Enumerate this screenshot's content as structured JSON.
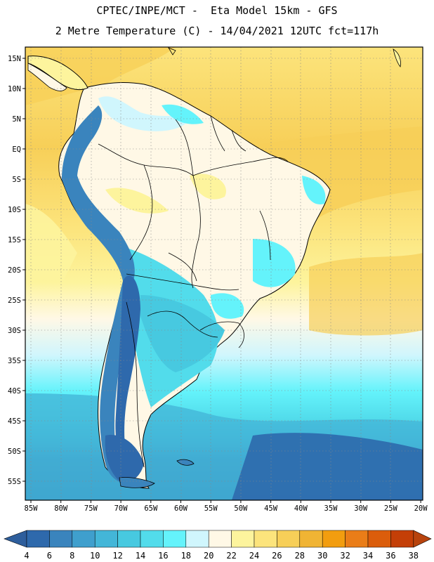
{
  "header": {
    "line1": "CPTEC/INPE/MCT -  Eta Model 15km - GFS",
    "line2": "2 Metre Temperature (C) - 14/04/2021 12UTC fct=117h"
  },
  "map": {
    "lat_labels": [
      "15N",
      "10N",
      "5N",
      "EQ",
      "5S",
      "10S",
      "15S",
      "20S",
      "25S",
      "30S",
      "35S",
      "40S",
      "45S",
      "50S",
      "55S"
    ],
    "lon_labels": [
      "85W",
      "80W",
      "75W",
      "70W",
      "65W",
      "60W",
      "55W",
      "50W",
      "45W",
      "40W",
      "35W",
      "30W",
      "25W",
      "20W"
    ]
  },
  "colorbar": {
    "labels": [
      "4",
      "6",
      "8",
      "10",
      "12",
      "14",
      "16",
      "18",
      "20",
      "22",
      "24",
      "26",
      "28",
      "30",
      "32",
      "34",
      "36",
      "38"
    ],
    "colors": [
      "#2e69ac",
      "#3a84bd",
      "#3f9fcd",
      "#43b6d8",
      "#47c9e0",
      "#52dceb",
      "#64f3fb",
      "#d0f6fd",
      "#fff8e6",
      "#fdf49d",
      "#fce47c",
      "#f7cf58",
      "#f0b434",
      "#f29d0f",
      "#ea7d18",
      "#db5d0b",
      "#c43f07"
    ],
    "low_color": "#2e5e9c",
    "high_color": "#b8430d"
  }
}
